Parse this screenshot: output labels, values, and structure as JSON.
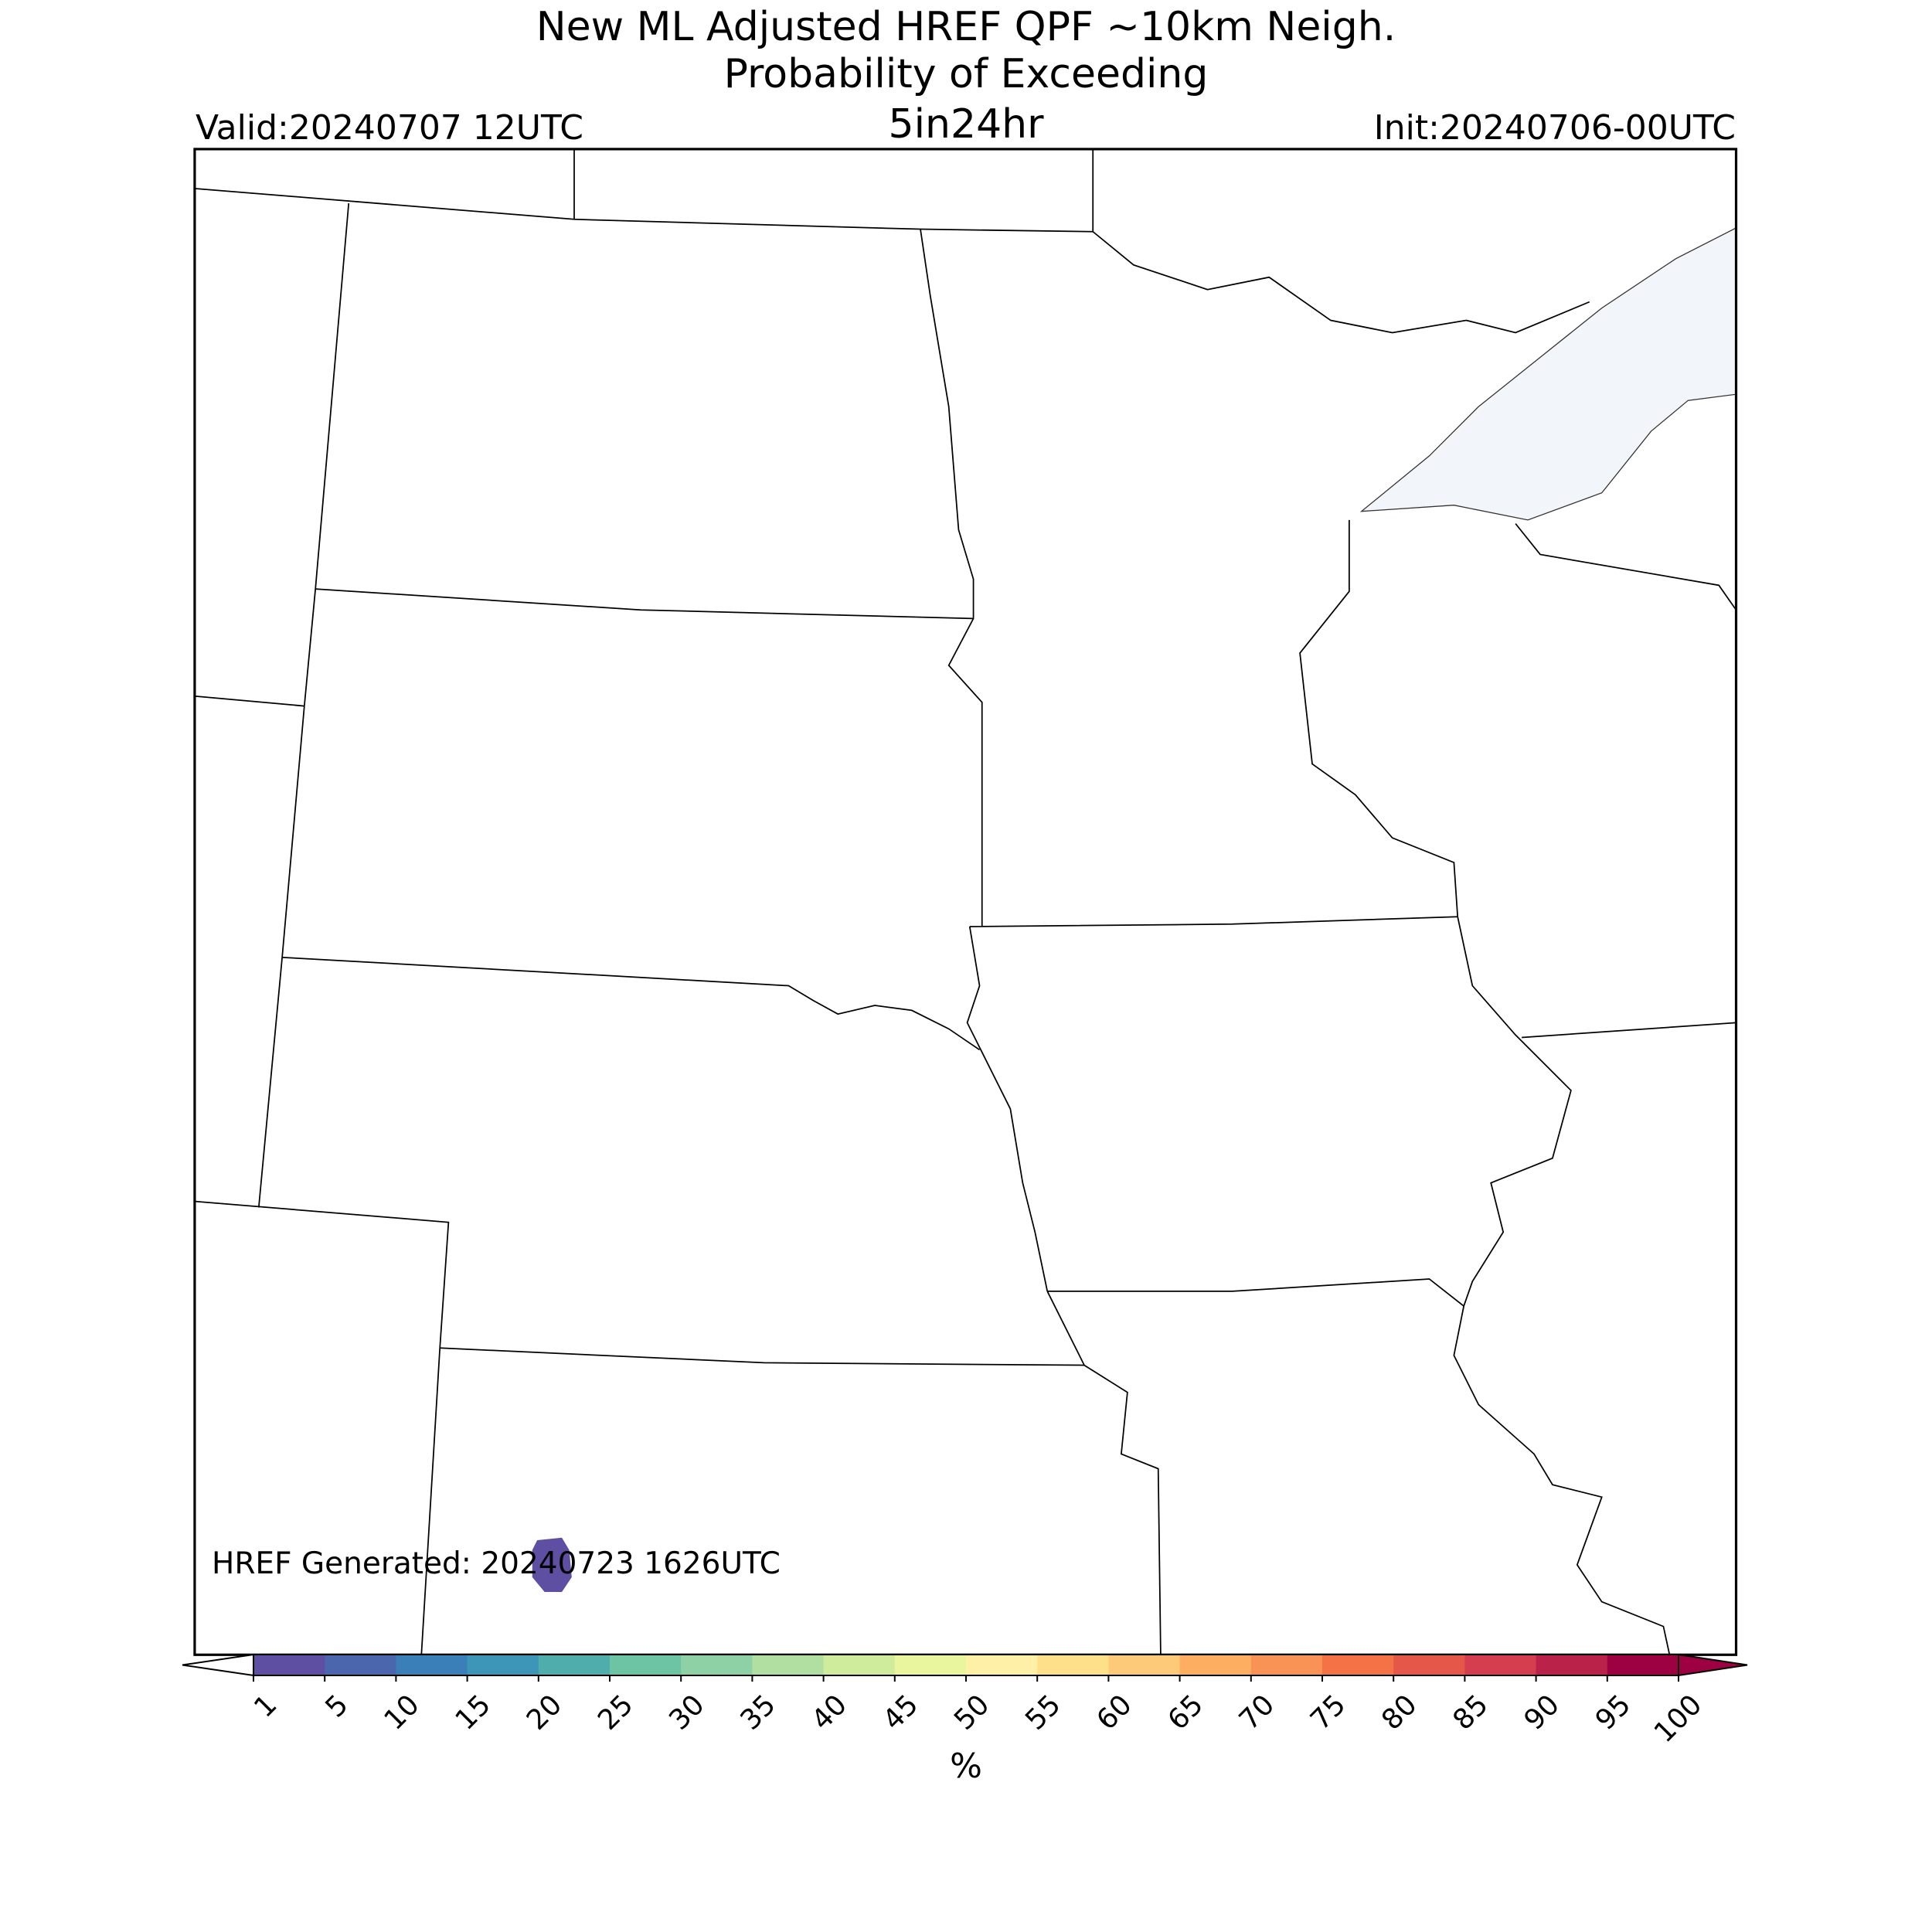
{
  "header": {
    "title_line1": "New ML Adjusted HREF QPF ~10km Neigh.",
    "title_line2": "Probability of Exceeding",
    "threshold": "5in24hr",
    "valid": "Valid:20240707 12UTC",
    "init": "Init:20240706-00UTC"
  },
  "map": {
    "generated": "HREF Generated: 20240723 1626UTC"
  },
  "colorbar": {
    "ticks": [
      1,
      5,
      10,
      15,
      20,
      25,
      30,
      35,
      40,
      45,
      50,
      55,
      60,
      65,
      70,
      75,
      80,
      85,
      90,
      95,
      100
    ],
    "colors": [
      "#5e4fa2",
      "#4b66ad",
      "#3a7fb8",
      "#3d95b8",
      "#4faeac",
      "#6dc4a5",
      "#8dd1a4",
      "#b1dfa2",
      "#cfec9d",
      "#e9f69d",
      "#fef1a7",
      "#fee08b",
      "#fdca79",
      "#fdae61",
      "#f99355",
      "#f47245",
      "#e55749",
      "#d53e4f",
      "#bb2249",
      "#9e0142"
    ],
    "label": "%"
  }
}
